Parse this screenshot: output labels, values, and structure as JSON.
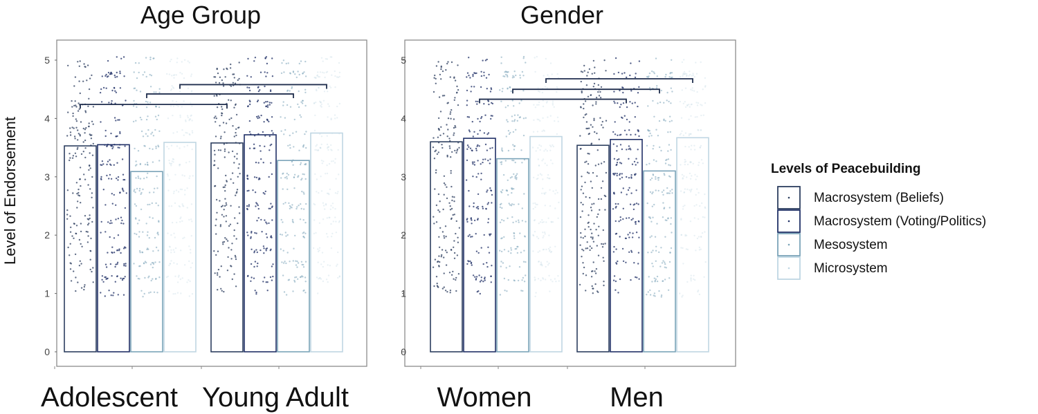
{
  "chart_data": [
    {
      "type": "bar",
      "title": "Age Group",
      "ylabel": "Level of Endorsement",
      "xlabel": "",
      "ylim": [
        0,
        5.3
      ],
      "yticks": [
        0,
        1,
        2,
        3,
        4,
        5
      ],
      "categories": [
        "Adolescent",
        "Young Adult"
      ],
      "series": [
        {
          "name": "Macrosystem (Beliefs)",
          "values": [
            3.53,
            3.58
          ]
        },
        {
          "name": "Macrosystem (Voting/Politics)",
          "values": [
            3.55,
            3.72
          ]
        },
        {
          "name": "Mesosystem",
          "values": [
            3.09,
            3.28
          ]
        },
        {
          "name": "Microsystem",
          "values": [
            3.59,
            3.75
          ]
        }
      ],
      "brackets": [
        {
          "from_group": 0,
          "from_series": 0,
          "to_group": 1,
          "to_series": 0,
          "y": 4.24
        },
        {
          "from_group": 0,
          "from_series": 2,
          "to_group": 1,
          "to_series": 2,
          "y": 4.42
        },
        {
          "from_group": 0,
          "from_series": 3,
          "to_group": 1,
          "to_series": 3,
          "y": 4.58
        }
      ]
    },
    {
      "type": "bar",
      "title": "Gender",
      "ylabel": "",
      "xlabel": "",
      "ylim": [
        0,
        5.3
      ],
      "yticks": [
        0,
        1,
        2,
        3,
        4,
        5
      ],
      "categories": [
        "Women",
        "Men"
      ],
      "series": [
        {
          "name": "Macrosystem (Beliefs)",
          "values": [
            3.6,
            3.54
          ]
        },
        {
          "name": "Macrosystem (Voting/Politics)",
          "values": [
            3.66,
            3.64
          ]
        },
        {
          "name": "Mesosystem",
          "values": [
            3.31,
            3.1
          ]
        },
        {
          "name": "Microsystem",
          "values": [
            3.69,
            3.67
          ]
        }
      ],
      "brackets": [
        {
          "from_group": 0,
          "from_series": 1,
          "to_group": 1,
          "to_series": 1,
          "y": 4.33
        },
        {
          "from_group": 0,
          "from_series": 2,
          "to_group": 1,
          "to_series": 2,
          "y": 4.5
        },
        {
          "from_group": 0,
          "from_series": 3,
          "to_group": 1,
          "to_series": 3,
          "y": 4.68
        }
      ]
    }
  ],
  "legend": {
    "title": "Levels of Peacebuilding",
    "items": [
      {
        "label": "Macrosystem (Beliefs)",
        "color": "#2c3e5f"
      },
      {
        "label": "Macrosystem (Voting/Politics)",
        "color": "#1f2f66"
      },
      {
        "label": "Mesosystem",
        "color": "#7aa3b8"
      },
      {
        "label": "Microsystem",
        "color": "#bfd6e3"
      }
    ]
  }
}
